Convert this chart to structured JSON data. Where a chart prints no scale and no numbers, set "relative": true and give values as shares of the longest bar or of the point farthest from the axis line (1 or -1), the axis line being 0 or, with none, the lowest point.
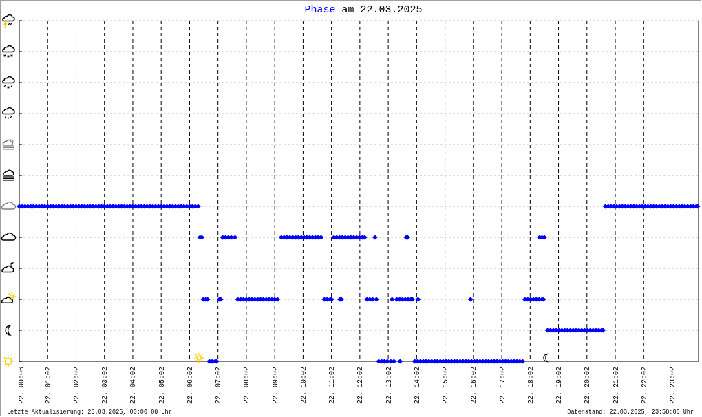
{
  "chart_data": {
    "type": "scatter",
    "title": "Phase am 22.03.2025",
    "relative": true,
    "marker": "diamond",
    "grid": true,
    "xlim": [
      "2025-03-22T00:02",
      "2025-03-22T23:58"
    ],
    "xticks": [
      {
        "value": "2025-03-22T00:06",
        "label": "22. 00:06"
      },
      {
        "value": "2025-03-22T01:02",
        "label": "22. 01:02"
      },
      {
        "value": "2025-03-22T02:02",
        "label": "22. 02:02"
      },
      {
        "value": "2025-03-22T03:02",
        "label": "22. 03:02"
      },
      {
        "value": "2025-03-22T04:02",
        "label": "22. 04:02"
      },
      {
        "value": "2025-03-22T05:02",
        "label": "22. 05:02"
      },
      {
        "value": "2025-03-22T06:02",
        "label": "22. 06:02"
      },
      {
        "value": "2025-03-22T07:02",
        "label": "22. 07:02"
      },
      {
        "value": "2025-03-22T08:02",
        "label": "22. 08:02"
      },
      {
        "value": "2025-03-22T09:02",
        "label": "22. 09:02"
      },
      {
        "value": "2025-03-22T10:02",
        "label": "22. 10:02"
      },
      {
        "value": "2025-03-22T11:02",
        "label": "22. 11:02"
      },
      {
        "value": "2025-03-22T12:02",
        "label": "22. 12:02"
      },
      {
        "value": "2025-03-22T13:02",
        "label": "22. 13:02"
      },
      {
        "value": "2025-03-22T14:02",
        "label": "22. 14:02"
      },
      {
        "value": "2025-03-22T15:02",
        "label": "22. 15:02"
      },
      {
        "value": "2025-03-22T16:02",
        "label": "22. 16:02"
      },
      {
        "value": "2025-03-22T17:02",
        "label": "22. 17:02"
      },
      {
        "value": "2025-03-22T18:02",
        "label": "22. 18:02"
      },
      {
        "value": "2025-03-22T19:02",
        "label": "22. 19:02"
      },
      {
        "value": "2025-03-22T20:02",
        "label": "22. 20:02"
      },
      {
        "value": "2025-03-22T21:02",
        "label": "22. 21:02"
      },
      {
        "value": "2025-03-22T22:02",
        "label": "22. 22:02"
      },
      {
        "value": "2025-03-22T23:02",
        "label": "22. 23:02"
      }
    ],
    "series": [
      {
        "color": "#0000ff",
        "x": [
          "2025-03-22T00:02",
          "2025-03-22T00:08",
          "2025-03-22T00:14",
          "2025-03-22T00:20",
          "2025-03-22T00:26",
          "2025-03-22T00:32",
          "2025-03-22T00:38",
          "2025-03-22T00:44",
          "2025-03-22T00:50",
          "2025-03-22T00:56",
          "2025-03-22T01:02",
          "2025-03-22T01:08",
          "2025-03-22T01:14",
          "2025-03-22T01:20",
          "2025-03-22T01:26",
          "2025-03-22T01:32",
          "2025-03-22T01:38",
          "2025-03-22T01:44",
          "2025-03-22T01:50",
          "2025-03-22T01:56",
          "2025-03-22T02:02",
          "2025-03-22T02:08",
          "2025-03-22T02:14",
          "2025-03-22T02:20",
          "2025-03-22T02:26",
          "2025-03-22T02:32",
          "2025-03-22T02:38",
          "2025-03-22T02:44",
          "2025-03-22T02:50",
          "2025-03-22T02:56",
          "2025-03-22T03:02",
          "2025-03-22T03:08",
          "2025-03-22T03:14",
          "2025-03-22T03:20",
          "2025-03-22T03:26",
          "2025-03-22T03:32",
          "2025-03-22T03:38",
          "2025-03-22T03:44",
          "2025-03-22T03:50",
          "2025-03-22T03:56",
          "2025-03-22T04:02",
          "2025-03-22T04:08",
          "2025-03-22T04:14",
          "2025-03-22T04:20",
          "2025-03-22T04:26",
          "2025-03-22T04:32",
          "2025-03-22T04:38",
          "2025-03-22T04:44",
          "2025-03-22T04:50",
          "2025-03-22T04:56",
          "2025-03-22T05:02",
          "2025-03-22T05:08",
          "2025-03-22T05:14",
          "2025-03-22T05:20",
          "2025-03-22T05:26",
          "2025-03-22T05:32",
          "2025-03-22T05:38",
          "2025-03-22T05:44",
          "2025-03-22T05:50",
          "2025-03-22T05:56",
          "2025-03-22T06:02",
          "2025-03-22T06:08",
          "2025-03-22T06:14",
          "2025-03-22T06:20",
          "2025-03-22T06:24",
          "2025-03-22T06:28",
          "2025-03-22T06:31",
          "2025-03-22T06:36",
          "2025-03-22T06:40",
          "2025-03-22T06:44",
          "2025-03-22T06:50",
          "2025-03-22T06:56",
          "2025-03-22T06:59",
          "2025-03-22T07:05",
          "2025-03-22T07:08",
          "2025-03-22T07:12",
          "2025-03-22T07:18",
          "2025-03-22T07:24",
          "2025-03-22T07:30",
          "2025-03-22T07:38",
          "2025-03-22T07:44",
          "2025-03-22T07:50",
          "2025-03-22T07:56",
          "2025-03-22T08:02",
          "2025-03-22T08:08",
          "2025-03-22T08:14",
          "2025-03-22T08:20",
          "2025-03-22T08:26",
          "2025-03-22T08:32",
          "2025-03-22T08:38",
          "2025-03-22T08:44",
          "2025-03-22T08:50",
          "2025-03-22T08:56",
          "2025-03-22T09:02",
          "2025-03-22T09:08",
          "2025-03-22T09:16",
          "2025-03-22T09:22",
          "2025-03-22T09:28",
          "2025-03-22T09:34",
          "2025-03-22T09:40",
          "2025-03-22T09:46",
          "2025-03-22T09:52",
          "2025-03-22T09:58",
          "2025-03-22T10:04",
          "2025-03-22T10:10",
          "2025-03-22T10:16",
          "2025-03-22T10:22",
          "2025-03-22T10:28",
          "2025-03-22T10:34",
          "2025-03-22T10:40",
          "2025-03-22T10:47",
          "2025-03-22T10:53",
          "2025-03-22T10:59",
          "2025-03-22T11:02",
          "2025-03-22T11:07",
          "2025-03-22T11:13",
          "2025-03-22T11:19",
          "2025-03-22T11:25",
          "2025-03-22T11:31",
          "2025-03-22T11:37",
          "2025-03-22T11:43",
          "2025-03-22T11:49",
          "2025-03-22T11:55",
          "2025-03-22T12:01",
          "2025-03-22T12:07",
          "2025-03-22T12:12",
          "2025-03-22T11:20",
          "2025-03-22T11:23",
          "2025-03-22T12:17",
          "2025-03-22T12:23",
          "2025-03-22T12:29",
          "2025-03-22T12:37",
          "2025-03-22T12:34",
          "2025-03-22T12:42",
          "2025-03-22T12:48",
          "2025-03-22T12:54",
          "2025-03-22T13:00",
          "2025-03-22T13:07",
          "2025-03-22T13:14",
          "2025-03-22T13:10",
          "2025-03-22T13:20",
          "2025-03-22T13:26",
          "2025-03-22T13:32",
          "2025-03-22T13:38",
          "2025-03-22T13:44",
          "2025-03-22T13:50",
          "2025-03-22T13:53",
          "2025-03-22T13:27",
          "2025-03-22T13:40",
          "2025-03-22T13:43",
          "2025-03-22T13:58",
          "2025-03-22T14:04",
          "2025-03-22T14:10",
          "2025-03-22T14:16",
          "2025-03-22T14:22",
          "2025-03-22T14:28",
          "2025-03-22T14:34",
          "2025-03-22T14:40",
          "2025-03-22T14:46",
          "2025-03-22T14:52",
          "2025-03-22T14:58",
          "2025-03-22T15:04",
          "2025-03-22T15:10",
          "2025-03-22T15:16",
          "2025-03-22T15:22",
          "2025-03-22T15:28",
          "2025-03-22T15:34",
          "2025-03-22T15:40",
          "2025-03-22T15:46",
          "2025-03-22T15:52",
          "2025-03-22T15:58",
          "2025-03-22T16:04",
          "2025-03-22T16:10",
          "2025-03-22T16:16",
          "2025-03-22T16:22",
          "2025-03-22T16:28",
          "2025-03-22T16:34",
          "2025-03-22T16:40",
          "2025-03-22T16:46",
          "2025-03-22T16:52",
          "2025-03-22T16:58",
          "2025-03-22T17:04",
          "2025-03-22T17:10",
          "2025-03-22T17:16",
          "2025-03-22T17:22",
          "2025-03-22T17:28",
          "2025-03-22T17:34",
          "2025-03-22T17:40",
          "2025-03-22T17:46",
          "2025-03-22T14:05",
          "2025-03-22T15:56",
          "2025-03-22T17:51",
          "2025-03-22T17:57",
          "2025-03-22T18:03",
          "2025-03-22T18:09",
          "2025-03-22T18:15",
          "2025-03-22T18:21",
          "2025-03-22T18:27",
          "2025-03-22T18:30",
          "2025-03-22T18:22",
          "2025-03-22T18:27",
          "2025-03-22T18:32",
          "2025-03-22T18:39",
          "2025-03-22T18:45",
          "2025-03-22T18:51",
          "2025-03-22T18:57",
          "2025-03-22T19:03",
          "2025-03-22T19:09",
          "2025-03-22T19:15",
          "2025-03-22T19:21",
          "2025-03-22T19:27",
          "2025-03-22T19:33",
          "2025-03-22T19:39",
          "2025-03-22T19:45",
          "2025-03-22T19:51",
          "2025-03-22T19:57",
          "2025-03-22T20:03",
          "2025-03-22T20:09",
          "2025-03-22T20:15",
          "2025-03-22T20:21",
          "2025-03-22T20:27",
          "2025-03-22T20:33",
          "2025-03-22T20:36",
          "2025-03-22T20:41",
          "2025-03-22T20:47",
          "2025-03-22T20:53",
          "2025-03-22T20:59",
          "2025-03-22T21:05",
          "2025-03-22T21:11",
          "2025-03-22T21:17",
          "2025-03-22T21:23",
          "2025-03-22T21:29",
          "2025-03-22T21:35",
          "2025-03-22T21:41",
          "2025-03-22T21:47",
          "2025-03-22T21:53",
          "2025-03-22T21:59",
          "2025-03-22T22:05",
          "2025-03-22T22:11",
          "2025-03-22T22:17",
          "2025-03-22T22:23",
          "2025-03-22T22:29",
          "2025-03-22T22:35",
          "2025-03-22T22:41",
          "2025-03-22T22:47",
          "2025-03-22T22:53",
          "2025-03-22T22:59",
          "2025-03-22T23:05",
          "2025-03-22T23:11",
          "2025-03-22T23:17",
          "2025-03-22T23:23",
          "2025-03-22T23:29",
          "2025-03-22T23:35",
          "2025-03-22T23:41",
          "2025-03-22T23:47",
          "2025-03-22T23:53",
          "2025-03-22T23:56"
        ],
        "values": [
          1,
          1,
          1,
          1,
          1,
          1,
          1,
          1,
          1,
          1,
          1,
          1,
          1,
          1,
          1,
          1,
          1,
          1,
          1,
          1,
          1,
          1,
          1,
          1,
          1,
          1,
          1,
          1,
          1,
          1,
          1,
          1,
          1,
          1,
          1,
          1,
          1,
          1,
          1,
          1,
          1,
          1,
          1,
          1,
          1,
          1,
          1,
          1,
          1,
          1,
          1,
          1,
          1,
          1,
          1,
          1,
          1,
          1,
          1,
          1,
          1,
          1,
          1,
          1,
          0.8,
          0.8,
          0.4,
          0.4,
          0.4,
          0,
          0,
          0,
          0,
          0.4,
          0.4,
          0.8,
          0.8,
          0.8,
          0.8,
          0.8,
          0.4,
          0.4,
          0.4,
          0.4,
          0.4,
          0.4,
          0.4,
          0.4,
          0.4,
          0.4,
          0.4,
          0.4,
          0.4,
          0.4,
          0.4,
          0.8,
          0.8,
          0.8,
          0.8,
          0.8,
          0.8,
          0.8,
          0.8,
          0.8,
          0.8,
          0.8,
          0.8,
          0.8,
          0.8,
          0.8,
          0.4,
          0.4,
          0.4,
          0.4,
          0.8,
          0.8,
          0.8,
          0.8,
          0.8,
          0.8,
          0.8,
          0.8,
          0.8,
          0.8,
          0.8,
          0.8,
          0.4,
          0.4,
          0.4,
          0.4,
          0.4,
          0.4,
          0.8,
          0,
          0,
          0,
          0,
          0,
          0,
          0.4,
          0.4,
          0.4,
          0.4,
          0.4,
          0.4,
          0.4,
          0.4,
          0,
          0.8,
          0.8,
          0,
          0,
          0,
          0,
          0,
          0,
          0,
          0,
          0,
          0,
          0,
          0,
          0,
          0,
          0,
          0,
          0,
          0,
          0,
          0,
          0,
          0,
          0,
          0,
          0,
          0,
          0,
          0,
          0,
          0,
          0,
          0,
          0,
          0,
          0,
          0,
          0,
          0,
          0,
          0.4,
          0.4,
          0.4,
          0.4,
          0.4,
          0.4,
          0.4,
          0.4,
          0.4,
          0.4,
          0.8,
          0.8,
          0.8,
          0.2,
          0.2,
          0.2,
          0.2,
          0.2,
          0.2,
          0.2,
          0.2,
          0.2,
          0.2,
          0.2,
          0.2,
          0.2,
          0.2,
          0.2,
          0.2,
          0.2,
          0.2,
          0.2,
          0.2,
          0.2,
          1,
          1,
          1,
          1,
          1,
          1,
          1,
          1,
          1,
          1,
          1,
          1,
          1,
          1,
          1,
          1,
          1,
          1,
          1,
          1,
          1,
          1,
          1,
          1,
          1,
          1,
          1,
          1,
          1,
          1,
          1,
          1,
          1,
          1
        ]
      }
    ],
    "annotations": [
      "Letzte Aktualisierung: 23.03.2025, 00:00:08 Uhr",
      "Datenstand: 22.03.2025, 23:58:06 Uhr"
    ]
  }
}
